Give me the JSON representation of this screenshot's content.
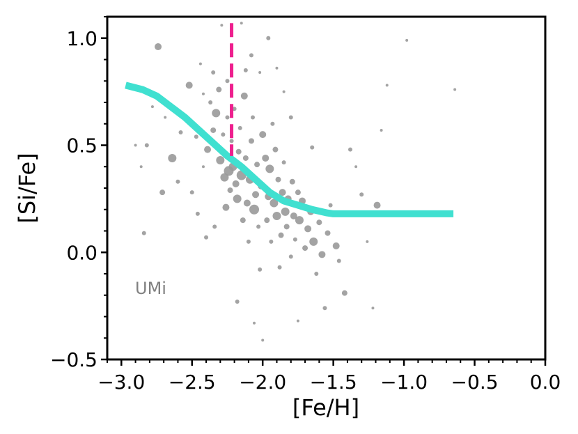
{
  "chart_data": {
    "type": "scatter",
    "xlabel": "[Fe/H]",
    "ylabel": "[Si/Fe]",
    "xlim": [
      -3.1,
      0.0
    ],
    "ylim": [
      -0.5,
      1.1
    ],
    "xticks": [
      -3.0,
      -2.5,
      -2.0,
      -1.5,
      -1.0,
      -0.5,
      0.0
    ],
    "xtick_labels": [
      "−3.0",
      "−2.5",
      "−2.0",
      "−1.5",
      "−1.0",
      "−0.5",
      "0.0"
    ],
    "yticks": [
      -0.5,
      0.0,
      0.5,
      1.0
    ],
    "ytick_labels": [
      "−0.5",
      "0.0",
      "0.5",
      "1.0"
    ],
    "annotation": "UMi",
    "grid": false,
    "colors": {
      "points": "#999999",
      "model_curve": "#40E0D0",
      "threshold_line": "#EE1F8E",
      "annotation": "#808080"
    },
    "threshold": {
      "x": -2.22,
      "y_range": [
        0.45,
        1.07
      ],
      "style": "dashed"
    },
    "model_curve": {
      "x": [
        -2.97,
        -2.85,
        -2.75,
        -2.65,
        -2.55,
        -2.45,
        -2.35,
        -2.25,
        -2.15,
        -2.05,
        -1.95,
        -1.85,
        -1.75,
        -1.65,
        -1.55,
        -1.5,
        -1.4,
        -1.2,
        -1.0,
        -0.8,
        -0.65
      ],
      "y": [
        0.78,
        0.76,
        0.73,
        0.68,
        0.63,
        0.57,
        0.51,
        0.45,
        0.4,
        0.34,
        0.28,
        0.24,
        0.22,
        0.2,
        0.185,
        0.18,
        0.18,
        0.18,
        0.18,
        0.18,
        0.18
      ]
    },
    "points": [
      {
        "x": -2.92,
        "y": 0.77,
        "s": 4
      },
      {
        "x": -2.78,
        "y": 0.68,
        "s": 2
      },
      {
        "x": -2.74,
        "y": 0.96,
        "s": 5
      },
      {
        "x": -2.69,
        "y": 0.63,
        "s": 2
      },
      {
        "x": -2.64,
        "y": 0.44,
        "s": 6
      },
      {
        "x": -2.71,
        "y": 0.28,
        "s": 4
      },
      {
        "x": -2.58,
        "y": 0.56,
        "s": 3
      },
      {
        "x": -2.55,
        "y": 0.63,
        "s": 2
      },
      {
        "x": -2.52,
        "y": 0.78,
        "s": 5
      },
      {
        "x": -2.47,
        "y": 0.54,
        "s": 3
      },
      {
        "x": -2.44,
        "y": 0.88,
        "s": 2
      },
      {
        "x": -2.42,
        "y": 0.4,
        "s": 2
      },
      {
        "x": -2.39,
        "y": 0.48,
        "s": 5
      },
      {
        "x": -2.37,
        "y": 0.7,
        "s": 3
      },
      {
        "x": -2.35,
        "y": 0.57,
        "s": 4
      },
      {
        "x": -2.33,
        "y": 0.65,
        "s": 6
      },
      {
        "x": -2.31,
        "y": 0.76,
        "s": 4
      },
      {
        "x": -2.3,
        "y": 0.43,
        "s": 6
      },
      {
        "x": -2.28,
        "y": 0.55,
        "s": 3
      },
      {
        "x": -2.27,
        "y": 0.35,
        "s": 6
      },
      {
        "x": -2.26,
        "y": 0.21,
        "s": 5
      },
      {
        "x": -2.25,
        "y": 0.63,
        "s": 3
      },
      {
        "x": -2.24,
        "y": 0.38,
        "s": 7
      },
      {
        "x": -2.23,
        "y": 0.29,
        "s": 4
      },
      {
        "x": -2.22,
        "y": 0.52,
        "s": 3
      },
      {
        "x": -2.21,
        "y": 0.4,
        "s": 6
      },
      {
        "x": -2.2,
        "y": 0.67,
        "s": 3
      },
      {
        "x": -2.19,
        "y": 0.32,
        "s": 5
      },
      {
        "x": -2.18,
        "y": 0.25,
        "s": 6
      },
      {
        "x": -2.17,
        "y": 0.47,
        "s": 4
      },
      {
        "x": -2.16,
        "y": 0.58,
        "s": 3
      },
      {
        "x": -2.15,
        "y": 0.36,
        "s": 7
      },
      {
        "x": -2.14,
        "y": 0.15,
        "s": 4
      },
      {
        "x": -2.13,
        "y": 0.73,
        "s": 5
      },
      {
        "x": -2.12,
        "y": 0.44,
        "s": 4
      },
      {
        "x": -2.11,
        "y": 0.23,
        "s": 5
      },
      {
        "x": -2.1,
        "y": 0.05,
        "s": 3
      },
      {
        "x": -2.09,
        "y": 0.34,
        "s": 6
      },
      {
        "x": -2.08,
        "y": 0.52,
        "s": 4
      },
      {
        "x": -2.07,
        "y": 0.63,
        "s": 3
      },
      {
        "x": -2.06,
        "y": 0.2,
        "s": 7
      },
      {
        "x": -2.05,
        "y": 0.27,
        "s": 5
      },
      {
        "x": -2.04,
        "y": 0.41,
        "s": 4
      },
      {
        "x": -2.03,
        "y": 0.12,
        "s": 3
      },
      {
        "x": -2.02,
        "y": -0.08,
        "s": 3
      },
      {
        "x": -2.01,
        "y": 0.31,
        "s": 5
      },
      {
        "x": -2.0,
        "y": 0.55,
        "s": 5
      },
      {
        "x": -1.98,
        "y": 0.44,
        "s": 5
      },
      {
        "x": -1.97,
        "y": 0.15,
        "s": 4
      },
      {
        "x": -1.96,
        "y": 0.26,
        "s": 5
      },
      {
        "x": -1.95,
        "y": 0.39,
        "s": 6
      },
      {
        "x": -1.94,
        "y": 0.05,
        "s": 3
      },
      {
        "x": -1.93,
        "y": 0.6,
        "s": 3
      },
      {
        "x": -1.92,
        "y": 0.23,
        "s": 6
      },
      {
        "x": -1.91,
        "y": 0.48,
        "s": 4
      },
      {
        "x": -1.9,
        "y": 0.17,
        "s": 6
      },
      {
        "x": -1.89,
        "y": 0.34,
        "s": 4
      },
      {
        "x": -1.88,
        "y": -0.07,
        "s": 3
      },
      {
        "x": -1.87,
        "y": 0.08,
        "s": 4
      },
      {
        "x": -1.86,
        "y": 0.28,
        "s": 5
      },
      {
        "x": -1.85,
        "y": 0.42,
        "s": 3
      },
      {
        "x": -1.84,
        "y": 0.19,
        "s": 6
      },
      {
        "x": -1.83,
        "y": 0.12,
        "s": 4
      },
      {
        "x": -1.82,
        "y": 0.25,
        "s": 5
      },
      {
        "x": -1.8,
        "y": -0.02,
        "s": 3
      },
      {
        "x": -1.79,
        "y": 0.33,
        "s": 4
      },
      {
        "x": -1.78,
        "y": 0.17,
        "s": 5
      },
      {
        "x": -1.77,
        "y": 0.06,
        "s": 3
      },
      {
        "x": -1.75,
        "y": 0.28,
        "s": 4
      },
      {
        "x": -1.74,
        "y": 0.15,
        "s": 6
      },
      {
        "x": -1.72,
        "y": 0.24,
        "s": 5
      },
      {
        "x": -1.7,
        "y": 0.02,
        "s": 4
      },
      {
        "x": -1.68,
        "y": 0.11,
        "s": 5
      },
      {
        "x": -1.66,
        "y": 0.19,
        "s": 5
      },
      {
        "x": -1.64,
        "y": 0.05,
        "s": 6
      },
      {
        "x": -1.62,
        "y": -0.1,
        "s": 3
      },
      {
        "x": -1.6,
        "y": 0.14,
        "s": 4
      },
      {
        "x": -1.58,
        "y": -0.01,
        "s": 5
      },
      {
        "x": -1.56,
        "y": -0.26,
        "s": 3
      },
      {
        "x": -1.54,
        "y": 0.09,
        "s": 4
      },
      {
        "x": -1.52,
        "y": 0.22,
        "s": 3
      },
      {
        "x": -1.48,
        "y": 0.03,
        "s": 5
      },
      {
        "x": -1.46,
        "y": -0.04,
        "s": 3
      },
      {
        "x": -1.42,
        "y": -0.19,
        "s": 4
      },
      {
        "x": -1.38,
        "y": 0.48,
        "s": 3
      },
      {
        "x": -1.34,
        "y": 0.4,
        "s": 2
      },
      {
        "x": -1.3,
        "y": 0.27,
        "s": 3
      },
      {
        "x": -1.26,
        "y": 0.05,
        "s": 2
      },
      {
        "x": -1.22,
        "y": -0.26,
        "s": 2
      },
      {
        "x": -1.19,
        "y": 0.22,
        "s": 5
      },
      {
        "x": -1.16,
        "y": 0.57,
        "s": 2
      },
      {
        "x": -1.12,
        "y": 0.78,
        "s": 2
      },
      {
        "x": -0.98,
        "y": 0.99,
        "s": 2
      },
      {
        "x": -0.64,
        "y": 0.76,
        "s": 2
      },
      {
        "x": -2.84,
        "y": 0.09,
        "s": 3
      },
      {
        "x": -2.9,
        "y": 0.5,
        "s": 2
      },
      {
        "x": -2.82,
        "y": 0.5,
        "s": 3
      },
      {
        "x": -2.86,
        "y": 0.4,
        "s": 2
      },
      {
        "x": -2.6,
        "y": 0.33,
        "s": 3
      },
      {
        "x": -2.5,
        "y": 0.28,
        "s": 3
      },
      {
        "x": -2.46,
        "y": 0.18,
        "s": 3
      },
      {
        "x": -2.4,
        "y": 0.07,
        "s": 3
      },
      {
        "x": -2.34,
        "y": 0.12,
        "s": 3
      },
      {
        "x": -2.29,
        "y": 1.06,
        "s": 2
      },
      {
        "x": -2.12,
        "y": 0.85,
        "s": 3
      },
      {
        "x": -2.08,
        "y": 0.92,
        "s": 3
      },
      {
        "x": -2.02,
        "y": 0.84,
        "s": 2
      },
      {
        "x": -1.96,
        "y": 1.0,
        "s": 3
      },
      {
        "x": -1.9,
        "y": 0.86,
        "s": 2
      },
      {
        "x": -1.85,
        "y": 0.75,
        "s": 2
      },
      {
        "x": -1.8,
        "y": 0.63,
        "s": 3
      },
      {
        "x": -2.18,
        "y": -0.23,
        "s": 3
      },
      {
        "x": -2.06,
        "y": -0.33,
        "s": 2
      },
      {
        "x": -2.0,
        "y": -0.41,
        "s": 2
      },
      {
        "x": -1.75,
        "y": -0.32,
        "s": 2
      },
      {
        "x": -2.15,
        "y": 1.07,
        "s": 2
      },
      {
        "x": -2.35,
        "y": 0.84,
        "s": 3
      },
      {
        "x": -2.25,
        "y": 0.8,
        "s": 3
      },
      {
        "x": -2.42,
        "y": 0.74,
        "s": 2
      },
      {
        "x": -1.65,
        "y": 0.49,
        "s": 3
      }
    ]
  }
}
